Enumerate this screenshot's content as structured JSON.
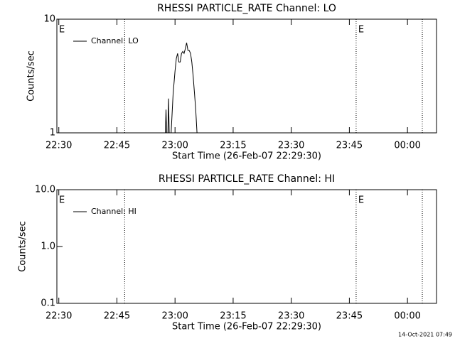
{
  "chart_data": [
    {
      "type": "line",
      "title": "RHESSI PARTICLE_RATE Channel: LO",
      "xlabel": "Start Time (26-Feb-07 22:29:30)",
      "ylabel": "Counts/sec",
      "log_y": true,
      "ylim": [
        1,
        10
      ],
      "yticks": [
        1,
        10
      ],
      "xlim": [
        "22:29:30",
        "00:07:30"
      ],
      "xticks": [
        "22:30",
        "22:45",
        "23:00",
        "23:15",
        "23:30",
        "23:45",
        "00:00"
      ],
      "event_lines": [
        "22:47:00",
        "23:46:45",
        "00:03:50"
      ],
      "annotations": [
        {
          "x": "22:29:30",
          "text": "E"
        },
        {
          "x": "23:46:45",
          "text": "E"
        }
      ],
      "legend": "upper left",
      "series": [
        {
          "name": "Channel: LO",
          "color": "#000000",
          "x": [
            "22:57:30",
            "22:57:40",
            "22:57:50",
            "22:58:10",
            "22:58:20",
            "22:58:30",
            "22:59:00",
            "22:59:30",
            "23:00:00",
            "23:00:20",
            "23:00:40",
            "23:01:00",
            "23:01:20",
            "23:01:40",
            "23:02:00",
            "23:02:20",
            "23:02:40",
            "23:03:00",
            "23:03:20",
            "23:03:40",
            "23:04:00",
            "23:04:20",
            "23:04:40",
            "23:05:00",
            "23:05:20",
            "23:05:40"
          ],
          "values": [
            1.0,
            1.6,
            1.0,
            1.0,
            2.0,
            1.0,
            1.0,
            2.2,
            3.5,
            4.5,
            5.0,
            4.2,
            4.2,
            5.0,
            5.2,
            5.0,
            5.5,
            6.2,
            5.3,
            5.3,
            5.0,
            4.2,
            3.2,
            2.3,
            1.6,
            1.0
          ]
        }
      ]
    },
    {
      "type": "line",
      "title": "RHESSI PARTICLE_RATE Channel: HI",
      "xlabel": "Start Time (26-Feb-07 22:29:30)",
      "ylabel": "Counts/sec",
      "log_y": true,
      "ylim": [
        0.1,
        10
      ],
      "yticks": [
        0.1,
        {
          "value": 1,
          "label": "1.0"
        },
        {
          "value": 10,
          "label": "10.0"
        }
      ],
      "xlim": [
        "22:29:30",
        "00:07:30"
      ],
      "xticks": [
        "22:30",
        "22:45",
        "23:00",
        "23:15",
        "23:30",
        "23:45",
        "00:00"
      ],
      "event_lines": [
        "22:47:00",
        "23:46:45",
        "00:03:50"
      ],
      "annotations": [
        {
          "x": "22:29:30",
          "text": "E"
        },
        {
          "x": "23:46:45",
          "text": "E"
        }
      ],
      "legend": "upper left",
      "series": [
        {
          "name": "Channel: HI",
          "color": "#000000",
          "x": [],
          "values": []
        }
      ]
    }
  ],
  "timestamp": "14-Oct-2021 07:49"
}
